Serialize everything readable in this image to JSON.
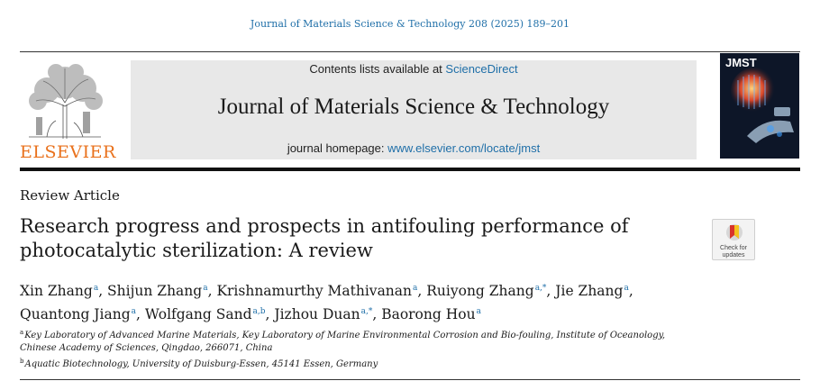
{
  "header": {
    "citation": "Journal of Materials Science & Technology 208 (2025) 189–201",
    "publisher": "ELSEVIER",
    "contents_prefix": "Contents lists available at ",
    "contents_link": "ScienceDirect",
    "journal_name": "Journal of Materials Science & Technology",
    "homepage_prefix": "journal homepage: ",
    "homepage_link": "www.elsevier.com/locate/jmst",
    "cover_title": "JMST"
  },
  "article": {
    "type": "Review Article",
    "title_line1": "Research progress and prospects in antifouling performance of",
    "title_line2": "photocatalytic sterilization: A review",
    "check_updates": "Check for updates"
  },
  "authors": [
    {
      "name": "Xin Zhang",
      "marks": "a"
    },
    {
      "name": "Shijun Zhang",
      "marks": "a"
    },
    {
      "name": "Krishnamurthy Mathivanan",
      "marks": "a"
    },
    {
      "name": "Ruiyong Zhang",
      "marks": "a,*"
    },
    {
      "name": "Jie Zhang",
      "marks": "a"
    },
    {
      "name": "Quantong Jiang",
      "marks": "a"
    },
    {
      "name": "Wolfgang Sand",
      "marks": "a,b"
    },
    {
      "name": "Jizhou Duan",
      "marks": "a,*"
    },
    {
      "name": "Baorong Hou",
      "marks": "a"
    }
  ],
  "affiliations": [
    {
      "mark": "a",
      "text": "Key Laboratory of Advanced Marine Materials, Key Laboratory of Marine Environmental Corrosion and Bio-fouling, Institute of Oceanology, Chinese Academy of Sciences, Qingdao, 266071, China"
    },
    {
      "mark": "b",
      "text": "Aquatic Biotechnology, University of Duisburg-Essen, 45141 Essen, Germany"
    }
  ],
  "colors": {
    "link_blue": "#1f6fa8",
    "elsevier_orange": "#e9711c",
    "banner_gray": "#e8e8e8"
  }
}
